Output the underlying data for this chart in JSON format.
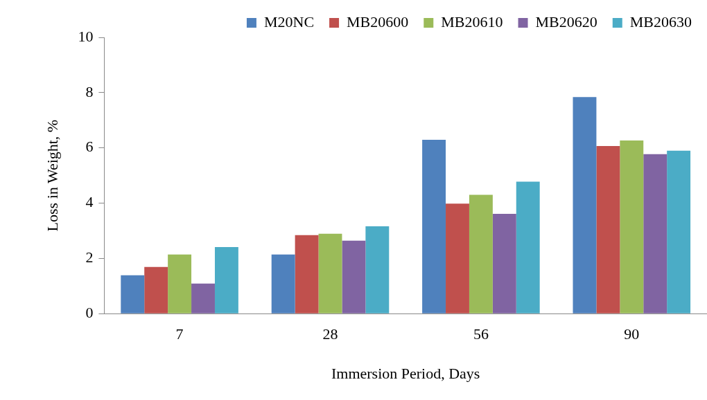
{
  "chart_data": {
    "type": "bar",
    "xlabel": "Immersion Period, Days",
    "ylabel": "Loss in Weight, %",
    "categories": [
      "7",
      "28",
      "56",
      "90"
    ],
    "series": [
      {
        "name": "M20NC",
        "color": "#4f81bd",
        "values": [
          1.39,
          2.14,
          6.29,
          7.84
        ]
      },
      {
        "name": "MB20600",
        "color": "#c0504d",
        "values": [
          1.69,
          2.84,
          3.98,
          6.07
        ]
      },
      {
        "name": "MB20610",
        "color": "#9bbb59",
        "values": [
          2.14,
          2.89,
          4.3,
          6.27
        ]
      },
      {
        "name": "MB20620",
        "color": "#8064a2",
        "values": [
          1.09,
          2.64,
          3.61,
          5.77
        ]
      },
      {
        "name": "MB20630",
        "color": "#4bacc6",
        "values": [
          2.41,
          3.16,
          4.78,
          5.9
        ]
      }
    ],
    "ylim": [
      0,
      10
    ],
    "yticks": [
      0,
      2,
      4,
      6,
      8,
      10
    ],
    "grid": false,
    "legend": "top"
  }
}
